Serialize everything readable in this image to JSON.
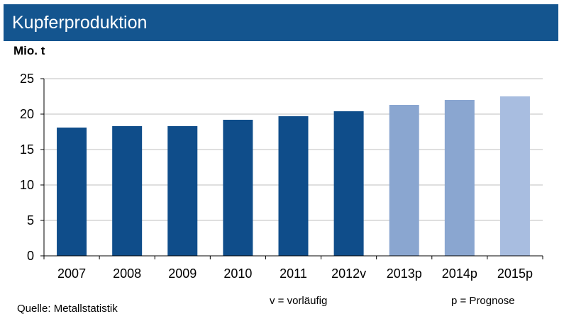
{
  "header": {
    "title": "Kupferproduktion"
  },
  "unit_label": "Mio. t",
  "chart_data": {
    "type": "bar",
    "categories": [
      "2007",
      "2008",
      "2009",
      "2010",
      "2011",
      "2012v",
      "2013p",
      "2014p",
      "2015p"
    ],
    "values": [
      18.1,
      18.3,
      18.3,
      19.2,
      19.7,
      20.4,
      21.3,
      22.0,
      22.5
    ],
    "ylim": [
      0,
      25
    ],
    "yticks": [
      0,
      5,
      10,
      15,
      20,
      25
    ],
    "grid": true,
    "colors": [
      "#0f4d8a",
      "#0f4d8a",
      "#0f4d8a",
      "#0f4d8a",
      "#0f4d8a",
      "#0f4d8a",
      "#8aa6d0",
      "#8aa6d0",
      "#a8bde0"
    ]
  },
  "footer": {
    "source": "Quelle:  Metallstatistik",
    "note_v": "v = vorläufig",
    "note_p": "p = Prognose"
  },
  "colors": {
    "header_bg": "#14558f"
  }
}
